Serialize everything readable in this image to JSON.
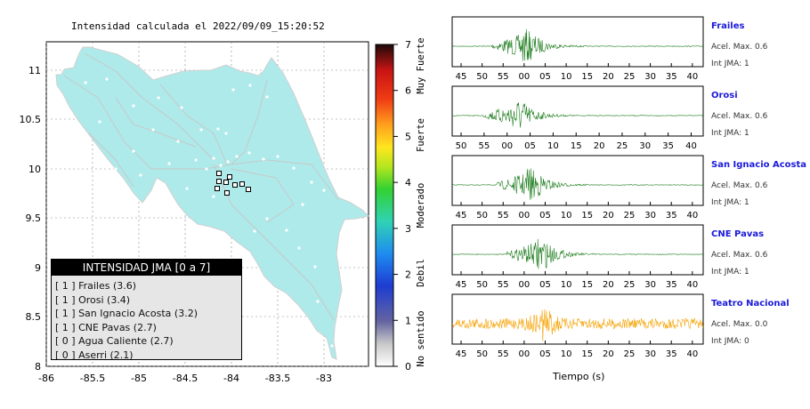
{
  "map": {
    "title": "Intensidad calculada el 2022/09/09_15:20:52",
    "x_ticks": [
      "-86",
      "-85.5",
      "-85",
      "-84.5",
      "-84",
      "-83.5",
      "-83"
    ],
    "y_ticks": [
      "11",
      "10.5",
      "10",
      "9.5",
      "9",
      "8.5",
      "8"
    ],
    "legend_title": "INTENSIDAD JMA [0 a 7]",
    "legend_items": [
      {
        "text": "[ 1 ]  Frailes (3.6)"
      },
      {
        "text": "[ 1 ]  Orosi (3.4)"
      },
      {
        "text": "[ 1 ]  San Ignacio Acosta (3.2)"
      },
      {
        "text": "[ 1 ]  CNE Pavas (2.7)"
      },
      {
        "text": "[ 0 ]  Agua Caliente (2.7)"
      },
      {
        "text": "[ 0 ]  Aserri (2.1)"
      }
    ],
    "land_color": "#aeeaea"
  },
  "scale": {
    "numbers": [
      "0",
      "1",
      "2",
      "3",
      "4",
      "5",
      "6",
      "7"
    ],
    "labels": [
      "No sentido",
      "Debil",
      "Moderado",
      "Fuerte",
      "Muy Fuerte"
    ]
  },
  "waveforms": [
    {
      "station": "Frailes",
      "accel": "Acel. Max. 0.6",
      "jma": "Int JMA: 1",
      "ticks": [
        "45",
        "50",
        "55",
        "00",
        "05",
        "10",
        "15",
        "20",
        "25",
        "30",
        "35",
        "40"
      ],
      "color": "#1e7d1e"
    },
    {
      "station": "Orosi",
      "accel": "Acel. Max. 0.6",
      "jma": "Int JMA: 1",
      "ticks": [
        "50",
        "55",
        "00",
        "05",
        "10",
        "15",
        "20",
        "25",
        "30",
        "35",
        "40"
      ],
      "color": "#1e7d1e"
    },
    {
      "station": "San Ignacio Acosta",
      "accel": "Acel. Max. 0.6",
      "jma": "Int JMA: 1",
      "ticks": [
        "45",
        "50",
        "55",
        "00",
        "05",
        "10",
        "15",
        "20",
        "25",
        "30",
        "35",
        "40"
      ],
      "color": "#1e7d1e"
    },
    {
      "station": "CNE Pavas",
      "accel": "Acel. Max. 0.6",
      "jma": "Int JMA: 1",
      "ticks": [
        "45",
        "50",
        "55",
        "00",
        "05",
        "10",
        "15",
        "20",
        "25",
        "30",
        "35",
        "40"
      ],
      "color": "#1e7d1e"
    },
    {
      "station": "Teatro Nacional",
      "accel": "Acel. Max. 0.0",
      "jma": "Int JMA: 0",
      "ticks": [
        "45",
        "50",
        "55",
        "00",
        "05",
        "10",
        "15",
        "20",
        "25",
        "30",
        "35",
        "40"
      ],
      "color": "#f5a200"
    }
  ],
  "x_axis_label": "Tiempo (s)"
}
